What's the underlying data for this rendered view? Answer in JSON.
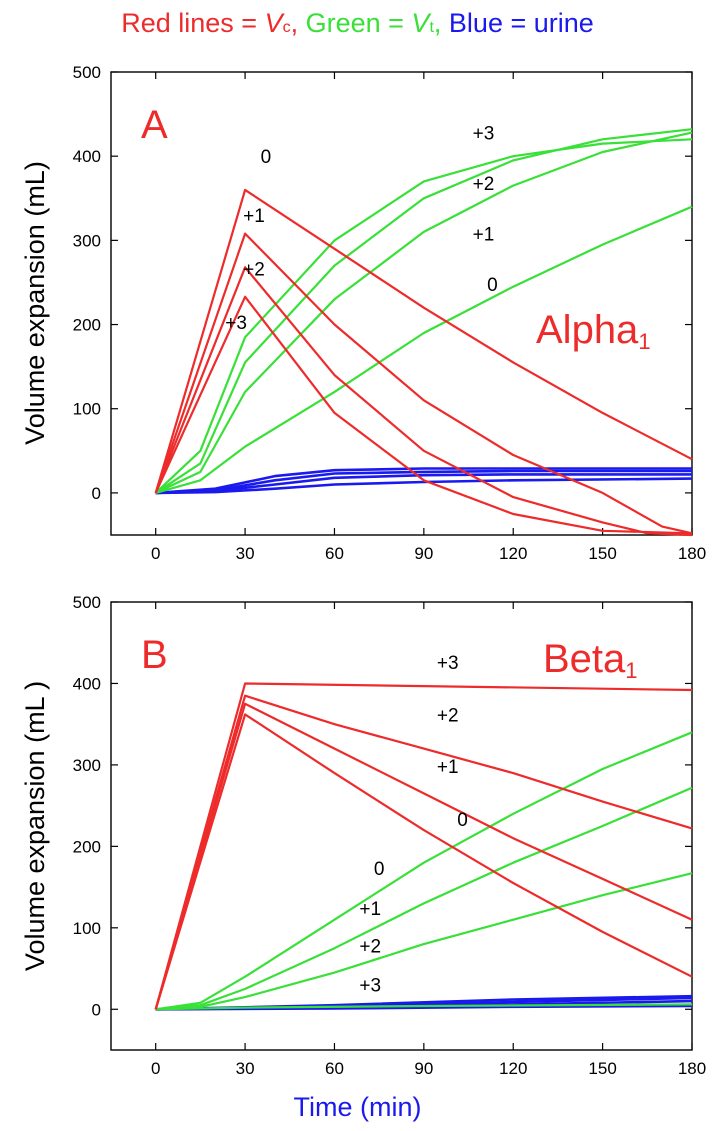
{
  "colors": {
    "red": "#ee2b2b",
    "green": "#38e038",
    "blue": "#1a1aee"
  },
  "header": {
    "red_pre": "Red lines = ",
    "red_var": "V",
    "red_sub": "c",
    "red_post": ",",
    "green_pre": "Green = ",
    "green_var": "V",
    "green_sub": "t",
    "green_post": ",",
    "blue_text": "Blue = urine"
  },
  "xlabel": "Time (min)",
  "chart_data": [
    {
      "type": "line",
      "panel": "A",
      "annotation": "Alpha",
      "annotation_sub": "1",
      "ylabel": "Volume expansion (mL)",
      "xlim": [
        -15,
        180
      ],
      "ylim": [
        -50,
        500
      ],
      "xticks": [
        0,
        30,
        60,
        90,
        120,
        150,
        180
      ],
      "yticks": [
        0,
        100,
        200,
        300,
        400,
        500
      ],
      "grid": false,
      "x": [
        0,
        30,
        60,
        90,
        120,
        150,
        180
      ],
      "series": [
        {
          "group": "Vc",
          "color": "red",
          "label": "0",
          "points": [
            [
              0,
              0
            ],
            [
              30,
              360
            ],
            [
              60,
              290
            ],
            [
              90,
              220
            ],
            [
              120,
              155
            ],
            [
              150,
              95
            ],
            [
              180,
              40
            ]
          ]
        },
        {
          "group": "Vc",
          "color": "red",
          "label": "+1",
          "points": [
            [
              0,
              0
            ],
            [
              30,
              308
            ],
            [
              60,
              200
            ],
            [
              90,
              110
            ],
            [
              120,
              45
            ],
            [
              150,
              0
            ],
            [
              170,
              -40
            ],
            [
              180,
              -48
            ]
          ]
        },
        {
          "group": "Vc",
          "color": "red",
          "label": "+2",
          "points": [
            [
              0,
              0
            ],
            [
              30,
              268
            ],
            [
              60,
              140
            ],
            [
              90,
              50
            ],
            [
              120,
              -5
            ],
            [
              150,
              -35
            ],
            [
              165,
              -48
            ],
            [
              180,
              -50
            ]
          ]
        },
        {
          "group": "Vc",
          "color": "red",
          "label": "+3",
          "points": [
            [
              0,
              0
            ],
            [
              30,
              233
            ],
            [
              60,
              95
            ],
            [
              90,
              15
            ],
            [
              120,
              -25
            ],
            [
              150,
              -45
            ],
            [
              180,
              -48
            ]
          ]
        },
        {
          "group": "Vt",
          "color": "green",
          "label": "+3",
          "points": [
            [
              0,
              0
            ],
            [
              15,
              50
            ],
            [
              30,
              185
            ],
            [
              60,
              300
            ],
            [
              90,
              370
            ],
            [
              120,
              400
            ],
            [
              150,
              415
            ],
            [
              180,
              420
            ]
          ]
        },
        {
          "group": "Vt",
          "color": "green",
          "label": "+2",
          "points": [
            [
              0,
              0
            ],
            [
              15,
              35
            ],
            [
              30,
              155
            ],
            [
              60,
              270
            ],
            [
              90,
              350
            ],
            [
              120,
              395
            ],
            [
              150,
              420
            ],
            [
              180,
              432
            ]
          ]
        },
        {
          "group": "Vt",
          "color": "green",
          "label": "+1",
          "points": [
            [
              0,
              0
            ],
            [
              15,
              25
            ],
            [
              30,
              120
            ],
            [
              60,
              230
            ],
            [
              90,
              310
            ],
            [
              120,
              365
            ],
            [
              150,
              405
            ],
            [
              180,
              428
            ]
          ]
        },
        {
          "group": "Vt",
          "color": "green",
          "label": "0",
          "points": [
            [
              0,
              0
            ],
            [
              15,
              15
            ],
            [
              30,
              55
            ],
            [
              60,
              120
            ],
            [
              90,
              190
            ],
            [
              120,
              245
            ],
            [
              150,
              295
            ],
            [
              180,
              340
            ]
          ]
        },
        {
          "group": "urine",
          "color": "blue",
          "label": "",
          "points": [
            [
              0,
              0
            ],
            [
              20,
              5
            ],
            [
              40,
              20
            ],
            [
              60,
              27
            ],
            [
              90,
              29
            ],
            [
              120,
              29
            ],
            [
              180,
              29
            ]
          ]
        },
        {
          "group": "urine",
          "color": "blue",
          "label": "",
          "points": [
            [
              0,
              0
            ],
            [
              20,
              3
            ],
            [
              40,
              15
            ],
            [
              60,
              23
            ],
            [
              90,
              25
            ],
            [
              120,
              26
            ],
            [
              180,
              26
            ]
          ]
        },
        {
          "group": "urine",
          "color": "blue",
          "label": "",
          "points": [
            [
              0,
              0
            ],
            [
              20,
              2
            ],
            [
              40,
              10
            ],
            [
              60,
              18
            ],
            [
              90,
              21
            ],
            [
              120,
              22
            ],
            [
              180,
              22
            ]
          ]
        },
        {
          "group": "urine",
          "color": "blue",
          "label": "",
          "points": [
            [
              0,
              0
            ],
            [
              20,
              1
            ],
            [
              40,
              5
            ],
            [
              60,
              10
            ],
            [
              90,
              13
            ],
            [
              120,
              15
            ],
            [
              180,
              17
            ]
          ]
        }
      ],
      "labels": [
        {
          "text": "0",
          "color": "black",
          "x": 37,
          "y": 392
        },
        {
          "text": "+1",
          "color": "black",
          "x": 33,
          "y": 322
        },
        {
          "text": "+2",
          "color": "black",
          "x": 33,
          "y": 258
        },
        {
          "text": "+3",
          "color": "black",
          "x": 27,
          "y": 195
        },
        {
          "text": "+3",
          "color": "black",
          "x": 110,
          "y": 420
        },
        {
          "text": "+2",
          "color": "black",
          "x": 110,
          "y": 360
        },
        {
          "text": "+1",
          "color": "black",
          "x": 110,
          "y": 300
        },
        {
          "text": "0",
          "color": "black",
          "x": 113,
          "y": 240
        }
      ]
    },
    {
      "type": "line",
      "panel": "B",
      "annotation": "Beta",
      "annotation_sub": "1",
      "ylabel": "Volume expansion (mL )",
      "xlim": [
        -15,
        180
      ],
      "ylim": [
        -50,
        500
      ],
      "xticks": [
        0,
        30,
        60,
        90,
        120,
        150,
        180
      ],
      "yticks": [
        0,
        100,
        200,
        300,
        400,
        500
      ],
      "grid": false,
      "x": [
        0,
        30,
        60,
        90,
        120,
        150,
        180
      ],
      "series": [
        {
          "group": "Vc",
          "color": "red",
          "label": "+3",
          "points": [
            [
              0,
              0
            ],
            [
              30,
              400
            ],
            [
              180,
              392
            ]
          ]
        },
        {
          "group": "Vc",
          "color": "red",
          "label": "+2",
          "points": [
            [
              0,
              0
            ],
            [
              30,
              385
            ],
            [
              60,
              350
            ],
            [
              90,
              320
            ],
            [
              120,
              290
            ],
            [
              150,
              255
            ],
            [
              180,
              222
            ]
          ]
        },
        {
          "group": "Vc",
          "color": "red",
          "label": "+1",
          "points": [
            [
              0,
              0
            ],
            [
              30,
              375
            ],
            [
              60,
              320
            ],
            [
              90,
              265
            ],
            [
              120,
              210
            ],
            [
              150,
              160
            ],
            [
              180,
              110
            ]
          ]
        },
        {
          "group": "Vc",
          "color": "red",
          "label": "0",
          "points": [
            [
              0,
              0
            ],
            [
              30,
              362
            ],
            [
              60,
              290
            ],
            [
              90,
              220
            ],
            [
              120,
              155
            ],
            [
              150,
              95
            ],
            [
              180,
              40
            ]
          ]
        },
        {
          "group": "Vt",
          "color": "green",
          "label": "0",
          "points": [
            [
              0,
              0
            ],
            [
              15,
              8
            ],
            [
              30,
              40
            ],
            [
              60,
              110
            ],
            [
              90,
              180
            ],
            [
              120,
              240
            ],
            [
              150,
              295
            ],
            [
              180,
              340
            ]
          ]
        },
        {
          "group": "Vt",
          "color": "green",
          "label": "+1",
          "points": [
            [
              0,
              0
            ],
            [
              15,
              5
            ],
            [
              30,
              25
            ],
            [
              60,
              75
            ],
            [
              90,
              130
            ],
            [
              120,
              180
            ],
            [
              150,
              225
            ],
            [
              180,
              272
            ]
          ]
        },
        {
          "group": "Vt",
          "color": "green",
          "label": "+2",
          "points": [
            [
              0,
              0
            ],
            [
              15,
              3
            ],
            [
              30,
              15
            ],
            [
              60,
              45
            ],
            [
              90,
              80
            ],
            [
              120,
              110
            ],
            [
              150,
              140
            ],
            [
              180,
              167
            ]
          ]
        },
        {
          "group": "Vt",
          "color": "green",
          "label": "+3",
          "points": [
            [
              0,
              0
            ],
            [
              30,
              2
            ],
            [
              90,
              4
            ],
            [
              180,
              6
            ]
          ]
        },
        {
          "group": "urine",
          "color": "blue",
          "label": "",
          "points": [
            [
              0,
              0
            ],
            [
              60,
              5
            ],
            [
              120,
              12
            ],
            [
              180,
              16
            ]
          ]
        },
        {
          "group": "urine",
          "color": "blue",
          "label": "",
          "points": [
            [
              0,
              0
            ],
            [
              60,
              3
            ],
            [
              120,
              9
            ],
            [
              180,
              14
            ]
          ]
        },
        {
          "group": "urine",
          "color": "blue",
          "label": "",
          "points": [
            [
              0,
              0
            ],
            [
              60,
              2
            ],
            [
              120,
              6
            ],
            [
              180,
              10
            ]
          ]
        },
        {
          "group": "urine",
          "color": "blue",
          "label": "",
          "points": [
            [
              0,
              0
            ],
            [
              60,
              1
            ],
            [
              120,
              3
            ],
            [
              180,
              4
            ]
          ]
        }
      ],
      "labels": [
        {
          "text": "+3",
          "color": "black",
          "x": 98,
          "y": 418
        },
        {
          "text": "+2",
          "color": "black",
          "x": 98,
          "y": 353
        },
        {
          "text": "+1",
          "color": "black",
          "x": 98,
          "y": 290
        },
        {
          "text": "0",
          "color": "black",
          "x": 103,
          "y": 225
        },
        {
          "text": "0",
          "color": "black",
          "x": 75,
          "y": 165
        },
        {
          "text": "+1",
          "color": "black",
          "x": 72,
          "y": 116
        },
        {
          "text": "+2",
          "color": "black",
          "x": 72,
          "y": 70
        },
        {
          "text": "+3",
          "color": "black",
          "x": 72,
          "y": 22
        }
      ]
    }
  ]
}
